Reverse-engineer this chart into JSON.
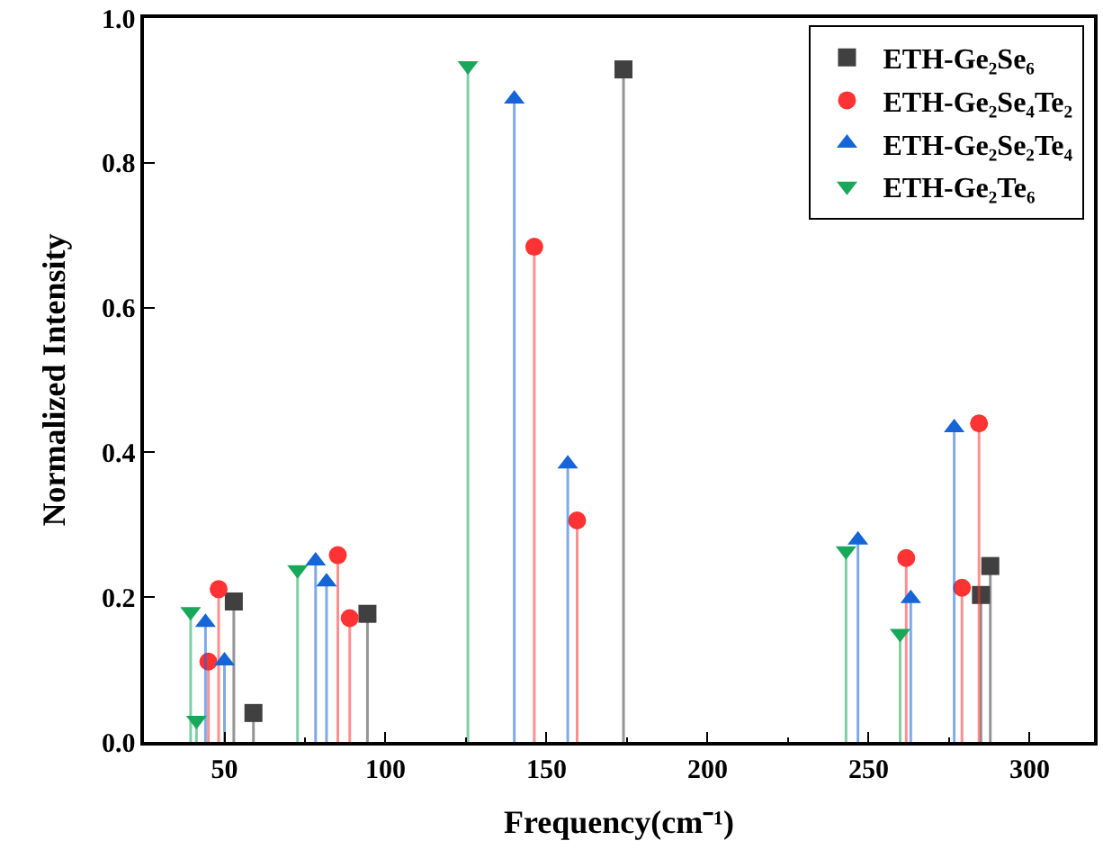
{
  "chart_data": {
    "type": "lollipop",
    "xlabel": "Frequency(cm⁻¹)",
    "ylabel": "Normalized Intensity",
    "xlim": [
      25,
      320
    ],
    "xticks": [
      50,
      100,
      150,
      200,
      250,
      300
    ],
    "ylim": [
      0,
      1.0
    ],
    "yticks": [
      {
        "value": 0,
        "label": "0.0"
      },
      0.2,
      0.4,
      0.6,
      0.8,
      {
        "value": 1.0,
        "label": "1.0"
      }
    ],
    "legend": "top right",
    "series": [
      {
        "name": "ETH-Ge₂Se₆",
        "color": "#404040",
        "marker": "square",
        "x": [
          52.9,
          59.0,
          94.4,
          173.9,
          284.9,
          287.8
        ],
        "values": [
          0.194,
          0.04,
          0.177,
          0.929,
          0.203,
          0.243
        ]
      },
      {
        "name": "ETH-Ge₂Se₄Te₂",
        "color": "#ff3333",
        "marker": "circle",
        "x": [
          45.0,
          48.2,
          85.2,
          88.9,
          146.2,
          159.5,
          261.7,
          279.0,
          284.3
        ],
        "values": [
          0.111,
          0.211,
          0.258,
          0.171,
          0.684,
          0.306,
          0.254,
          0.213,
          0.44
        ]
      },
      {
        "name": "ETH-Ge₂Se₂Te₄",
        "color": "#1565d8",
        "marker": "triangle",
        "x": [
          44.1,
          50.0,
          78.3,
          81.7,
          140.0,
          156.6,
          246.7,
          263.1,
          276.6
        ],
        "values": [
          0.165,
          0.112,
          0.25,
          0.221,
          0.888,
          0.384,
          0.279,
          0.198,
          0.434
        ]
      },
      {
        "name": "ETH-Ge₂Te₆",
        "color": "#18a85a",
        "marker": "triangle-down",
        "x": [
          39.5,
          41.3,
          72.7,
          125.6,
          243.0,
          259.8
        ],
        "values": [
          0.18,
          0.03,
          0.238,
          0.934,
          0.264,
          0.15
        ]
      }
    ]
  }
}
